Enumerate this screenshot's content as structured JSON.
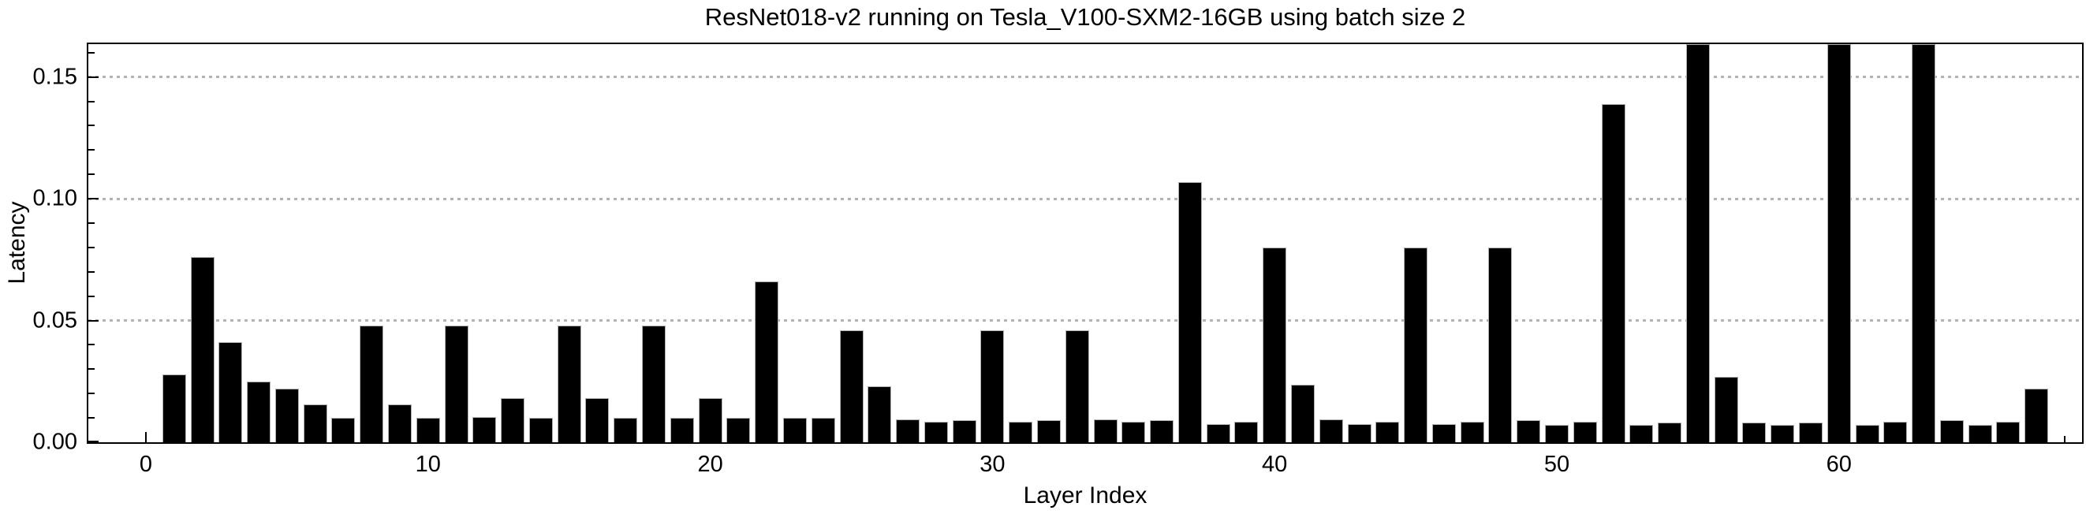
{
  "title": "ResNet018-v2 running on Tesla_V100-SXM2-16GB using batch size 2",
  "chart_data": {
    "type": "bar",
    "title": "ResNet018-v2 running on Tesla_V100-SXM2-16GB using batch size 2",
    "xlabel": "Layer Index",
    "ylabel": "Latency",
    "x": [
      1,
      2,
      3,
      4,
      5,
      6,
      7,
      8,
      9,
      10,
      11,
      12,
      13,
      14,
      15,
      16,
      17,
      18,
      19,
      20,
      21,
      22,
      23,
      24,
      25,
      26,
      27,
      28,
      29,
      30,
      31,
      32,
      33,
      34,
      35,
      36,
      37,
      38,
      39,
      40,
      41,
      42,
      43,
      44,
      45,
      46,
      47,
      48,
      49,
      50,
      51,
      52,
      53,
      54,
      55,
      56,
      57,
      58,
      59,
      60,
      61,
      62,
      63,
      64,
      65,
      66,
      67
    ],
    "values": [
      0.028,
      0.076,
      0.041,
      0.025,
      0.022,
      0.0155,
      0.01,
      0.048,
      0.0155,
      0.01,
      0.048,
      0.0105,
      0.018,
      0.01,
      0.048,
      0.018,
      0.01,
      0.048,
      0.01,
      0.018,
      0.01,
      0.066,
      0.01,
      0.01,
      0.046,
      0.023,
      0.0095,
      0.0085,
      0.009,
      0.046,
      0.0085,
      0.009,
      0.046,
      0.0095,
      0.0085,
      0.009,
      0.107,
      0.0075,
      0.0085,
      0.08,
      0.0235,
      0.0095,
      0.0075,
      0.0085,
      0.08,
      0.0075,
      0.0085,
      0.08,
      0.009,
      0.007,
      0.0085,
      0.139,
      0.007,
      0.008,
      0.166,
      0.027,
      0.008,
      0.007,
      0.008,
      0.166,
      0.007,
      0.0085,
      0.166,
      0.009,
      0.007,
      0.0085,
      0.022
    ],
    "clipped_layers": [
      55,
      60,
      63
    ],
    "clipped_note": "Bars for layers 55, 60 and 63 extend above the plot frame and are clipped at the top (value > 0.163)",
    "ylim": [
      0,
      0.1635
    ],
    "xlim_layers": [
      -2.1,
      68.8
    ],
    "yticks_major": [
      0,
      0.05,
      0.1,
      0.15
    ],
    "ytick_labels": [
      "0.00",
      "0.05",
      "0.10",
      "0.15"
    ],
    "ytick_minor_step": 0.01,
    "xticks_major": [
      0,
      10,
      20,
      30,
      40,
      50,
      60
    ],
    "xtick_labels": [
      "0",
      "10",
      "20",
      "30",
      "40",
      "50",
      "60"
    ],
    "xticks_minor": [
      68
    ],
    "grid": {
      "horizontal_at": [
        0.05,
        0.1,
        0.15
      ],
      "style": "dotted",
      "color": "#b3b3b3"
    },
    "legend": "none",
    "bar_color": "#000000",
    "bar_edge_color": "#b0b0b0",
    "frame_color": "#000000",
    "grid_color": "#b3b3b3",
    "text_color": "#000000",
    "background_color": "#ffffff"
  }
}
